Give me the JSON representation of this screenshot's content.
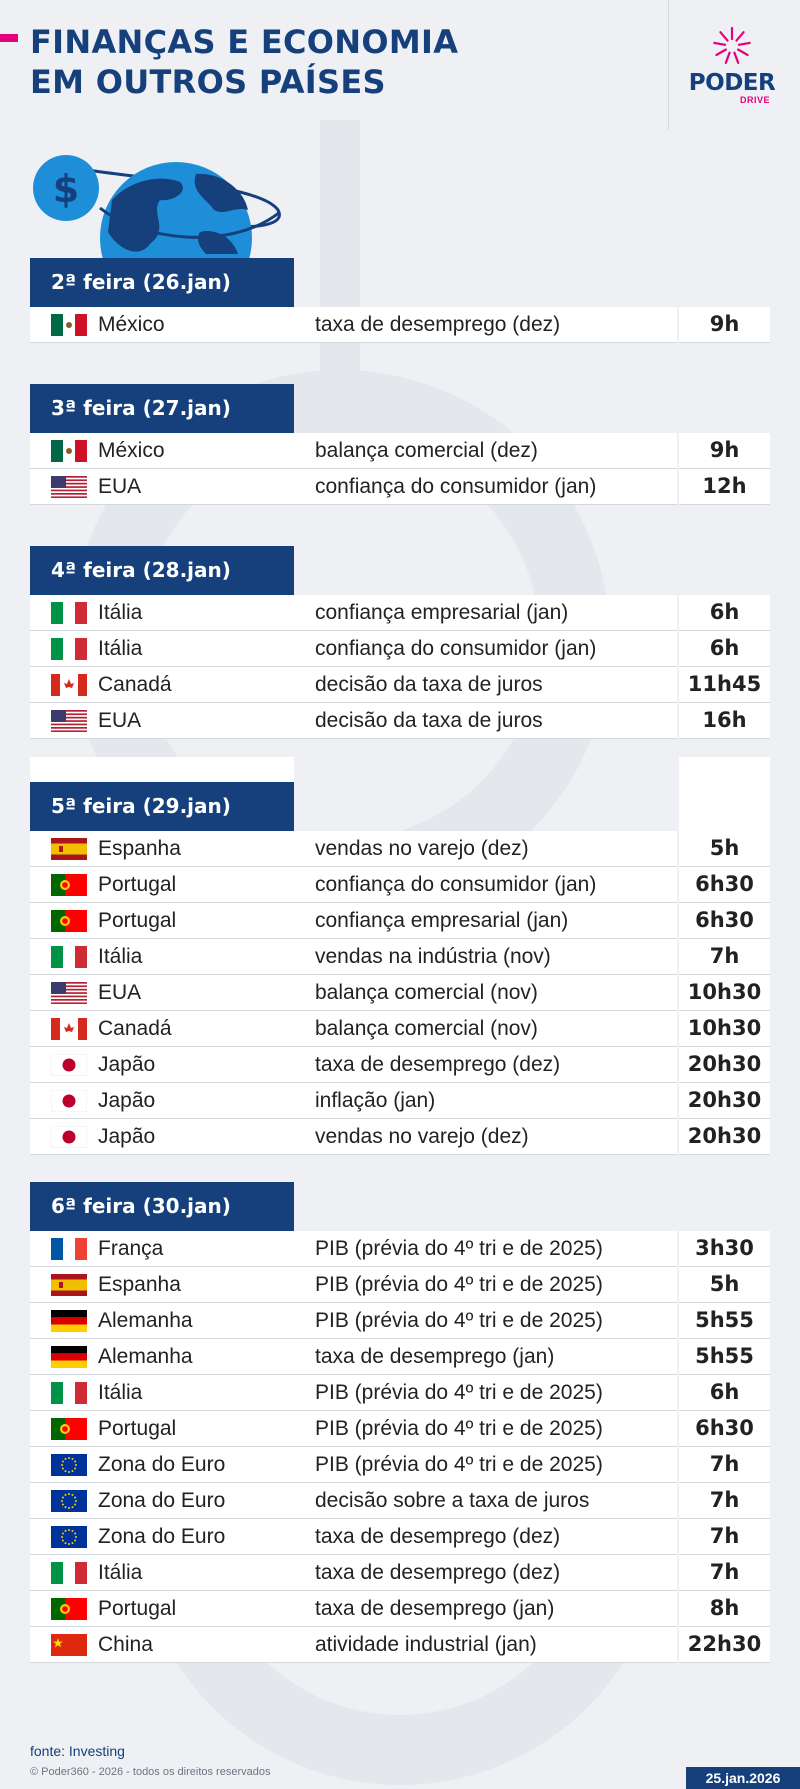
{
  "header": {
    "title_line1": "FINANÇAS E ECONOMIA",
    "title_line2": "EM OUTROS PAÍSES",
    "logo_text": "PODER",
    "logo_sub": "DRIVE"
  },
  "colors": {
    "navy": "#16407c",
    "accent": "#e5007d",
    "globe": "#1e8ed8",
    "background": "#eef0f3"
  },
  "days": [
    {
      "label": "2ª feira (26.jan)",
      "rows": [
        {
          "flag": "mexico-flag",
          "country": "México",
          "event": "taxa de desemprego (dez)",
          "time": "9h"
        }
      ]
    },
    {
      "label": "3ª feira (27.jan)",
      "rows": [
        {
          "flag": "mexico-flag",
          "country": "México",
          "event": "balança comercial (dez)",
          "time": "9h"
        },
        {
          "flag": "usa-flag",
          "country": "EUA",
          "event": "confiança do consumidor (jan)",
          "time": "12h"
        }
      ]
    },
    {
      "label": "4ª feira (28.jan)",
      "rows": [
        {
          "flag": "italy-flag",
          "country": "Itália",
          "event": "confiança empresarial (jan)",
          "time": "6h"
        },
        {
          "flag": "italy-flag",
          "country": "Itália",
          "event": "confiança do consumidor (jan)",
          "time": "6h"
        },
        {
          "flag": "canada-flag",
          "country": "Canadá",
          "event": "decisão da taxa de juros",
          "time": "11h45"
        },
        {
          "flag": "usa-flag",
          "country": "EUA",
          "event": "decisão da taxa de juros",
          "time": "16h"
        }
      ]
    },
    {
      "label": "5ª feira (29.jan)",
      "rows": [
        {
          "flag": "spain-flag",
          "country": "Espanha",
          "event": "vendas no varejo (dez)",
          "time": "5h"
        },
        {
          "flag": "portugal-flag",
          "country": "Portugal",
          "event": "confiança do consumidor (jan)",
          "time": "6h30"
        },
        {
          "flag": "portugal-flag",
          "country": "Portugal",
          "event": "confiança empresarial (jan)",
          "time": "6h30"
        },
        {
          "flag": "italy-flag",
          "country": "Itália",
          "event": "vendas na indústria (nov)",
          "time": "7h"
        },
        {
          "flag": "usa-flag",
          "country": "EUA",
          "event": "balança comercial (nov)",
          "time": "10h30"
        },
        {
          "flag": "canada-flag",
          "country": "Canadá",
          "event": "balança comercial (nov)",
          "time": "10h30"
        },
        {
          "flag": "japan-flag",
          "country": "Japão",
          "event": "taxa de desemprego (dez)",
          "time": "20h30"
        },
        {
          "flag": "japan-flag",
          "country": "Japão",
          "event": "inflação (jan)",
          "time": "20h30"
        },
        {
          "flag": "japan-flag",
          "country": "Japão",
          "event": "vendas no varejo (dez)",
          "time": "20h30"
        }
      ]
    },
    {
      "label": "6ª feira (30.jan)",
      "rows": [
        {
          "flag": "france-flag",
          "country": "França",
          "event": "PIB (prévia do 4º tri e de 2025)",
          "time": "3h30"
        },
        {
          "flag": "spain-flag",
          "country": "Espanha",
          "event": "PIB (prévia do 4º tri e de 2025)",
          "time": "5h"
        },
        {
          "flag": "germany-flag",
          "country": "Alemanha",
          "event": "PIB (prévia do 4º tri e de 2025)",
          "time": "5h55"
        },
        {
          "flag": "germany-flag",
          "country": "Alemanha",
          "event": "taxa de desemprego (jan)",
          "time": "5h55"
        },
        {
          "flag": "italy-flag",
          "country": "Itália",
          "event": "PIB (prévia do 4º tri e de 2025)",
          "time": "6h"
        },
        {
          "flag": "portugal-flag",
          "country": "Portugal",
          "event": "PIB (prévia do 4º tri e de 2025)",
          "time": "6h30"
        },
        {
          "flag": "eu-flag",
          "country": "Zona do Euro",
          "event": "PIB (prévia do 4º tri e de 2025)",
          "time": "7h"
        },
        {
          "flag": "eu-flag",
          "country": "Zona do Euro",
          "event": "decisão sobre a taxa de juros",
          "time": "7h"
        },
        {
          "flag": "eu-flag",
          "country": "Zona do Euro",
          "event": "taxa de desemprego (dez)",
          "time": "7h"
        },
        {
          "flag": "italy-flag",
          "country": "Itália",
          "event": "taxa de desemprego (dez)",
          "time": "7h"
        },
        {
          "flag": "portugal-flag",
          "country": "Portugal",
          "event": "taxa de desemprego (jan)",
          "time": "8h"
        },
        {
          "flag": "china-flag",
          "country": "China",
          "event": "atividade industrial (jan)",
          "time": "22h30"
        }
      ]
    }
  ],
  "footer": {
    "source": "fonte: Investing",
    "copyright": "© Poder360 - 2026 - todos os direitos reservados",
    "date": "25.jan.2026"
  }
}
